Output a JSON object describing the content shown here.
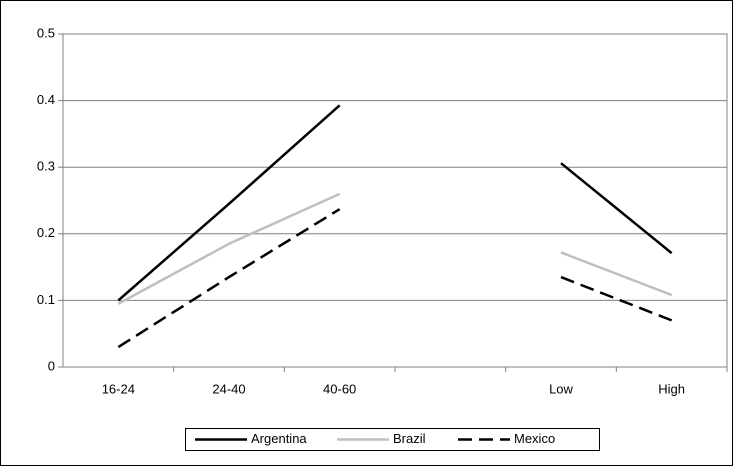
{
  "chart_data": {
    "type": "line",
    "categories": [
      "16-24",
      "24-40",
      "40-60",
      null,
      "Low",
      "High"
    ],
    "series": [
      {
        "name": "Argentina",
        "color": "#000000",
        "dash": "solid",
        "values": [
          0.1,
          0.245,
          0.393,
          null,
          0.306,
          0.171
        ]
      },
      {
        "name": "Brazil",
        "color": "#bfbfbf",
        "dash": "solid",
        "values": [
          0.095,
          0.185,
          0.26,
          null,
          0.172,
          0.108
        ]
      },
      {
        "name": "Mexico",
        "color": "#000000",
        "dash": "dashed",
        "values": [
          0.03,
          0.135,
          0.237,
          null,
          0.135,
          0.07
        ]
      }
    ],
    "ylim": [
      0,
      0.5
    ],
    "yticks": [
      0,
      0.1,
      0.2,
      0.3,
      0.4,
      0.5
    ],
    "grid": true,
    "legend": "bottom"
  }
}
